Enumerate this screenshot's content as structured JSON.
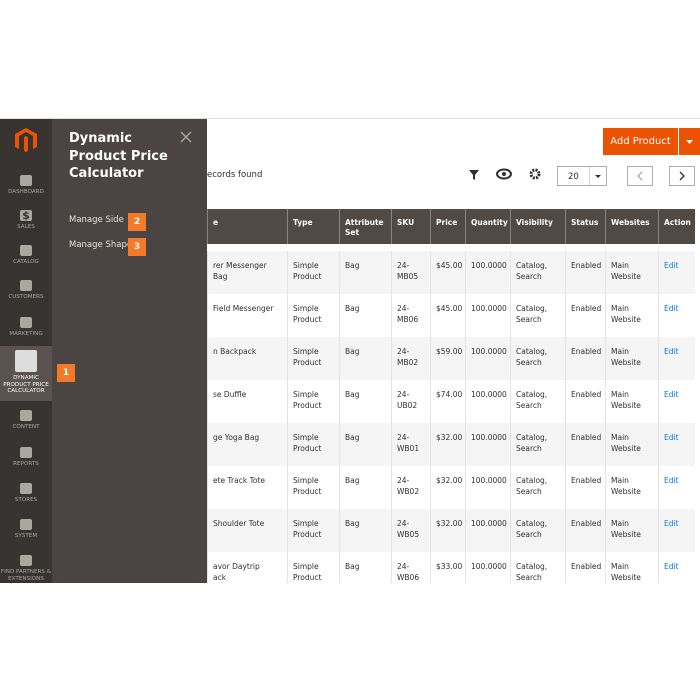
{
  "sidebar": {
    "items": [
      {
        "icon": "",
        "label": "DASHBOARD"
      },
      {
        "icon": "$",
        "label": "SALES"
      },
      {
        "icon": "",
        "label": "CATALOG"
      },
      {
        "icon": "",
        "label": "CUSTOMERS"
      },
      {
        "icon": "",
        "label": "MARKETING"
      },
      {
        "icon": "",
        "label": "DYNAMIC PRODUCT PRICE CALCULATOR"
      },
      {
        "icon": "",
        "label": "CONTENT"
      },
      {
        "icon": "",
        "label": "REPORTS"
      },
      {
        "icon": "",
        "label": "STORES"
      },
      {
        "icon": "",
        "label": "SYSTEM"
      },
      {
        "icon": "",
        "label": "FIND PARTNERS & EXTENSIONS"
      }
    ],
    "badge": "1"
  },
  "flyout": {
    "title": "Dynamic Product Price Calculator",
    "links": [
      {
        "label": "Manage Side",
        "badge": "2"
      },
      {
        "label": "Manage Shape",
        "badge": "3"
      }
    ]
  },
  "toolbar": {
    "button": "Add Product",
    "records": "ecords found",
    "page_size": "20"
  },
  "table": {
    "headers": [
      "e",
      "Type",
      "Attribute Set",
      "SKU",
      "Price",
      "Quantity",
      "Visibility",
      "Status",
      "Websites",
      "Action"
    ],
    "rows": [
      [
        "rer Messenger Bag",
        "Simple Product",
        "Bag",
        "24-MB05",
        "$45.00",
        "100.0000",
        "Catalog, Search",
        "Enabled",
        "Main Website",
        "Edit"
      ],
      [
        "Field Messenger",
        "Simple Product",
        "Bag",
        "24-MB06",
        "$45.00",
        "100.0000",
        "Catalog, Search",
        "Enabled",
        "Main Website",
        "Edit"
      ],
      [
        "n Backpack",
        "Simple Product",
        "Bag",
        "24-MB02",
        "$59.00",
        "100.0000",
        "Catalog, Search",
        "Enabled",
        "Main Website",
        "Edit"
      ],
      [
        "se Duffle",
        "Simple Product",
        "Bag",
        "24-UB02",
        "$74.00",
        "100.0000",
        "Catalog, Search",
        "Enabled",
        "Main Website",
        "Edit"
      ],
      [
        "ge Yoga Bag",
        "Simple Product",
        "Bag",
        "24-WB01",
        "$32.00",
        "100.0000",
        "Catalog, Search",
        "Enabled",
        "Main Website",
        "Edit"
      ],
      [
        "ete Track Tote",
        "Simple Product",
        "Bag",
        "24-WB02",
        "$32.00",
        "100.0000",
        "Catalog, Search",
        "Enabled",
        "Main Website",
        "Edit"
      ],
      [
        "Shoulder Tote",
        "Simple Product",
        "Bag",
        "24-WB05",
        "$32.00",
        "100.0000",
        "Catalog, Search",
        "Enabled",
        "Main Website",
        "Edit"
      ],
      [
        "avor Daytrip\nack",
        "Simple Product",
        "Bag",
        "24-WB06",
        "$33.00",
        "100.0000",
        "Catalog, Search",
        "Enabled",
        "Main Website",
        "Edit"
      ]
    ]
  }
}
